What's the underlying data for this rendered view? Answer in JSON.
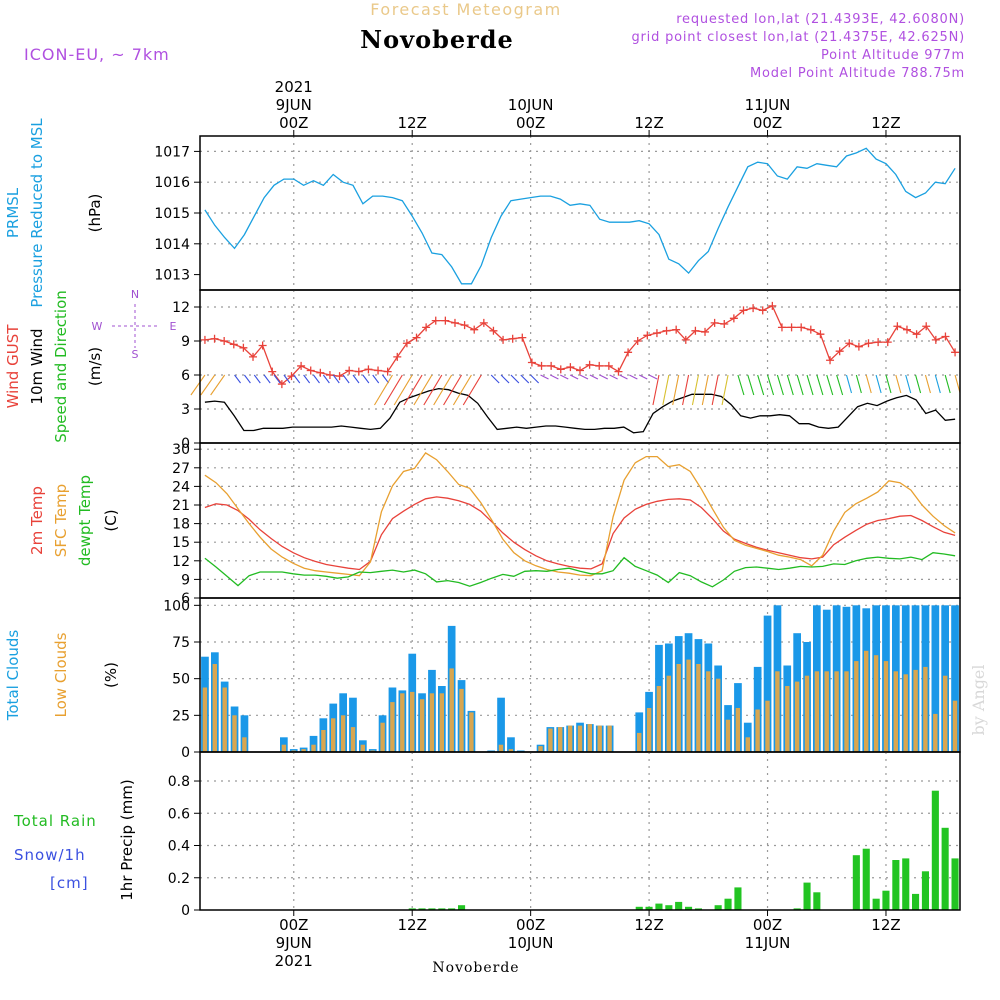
{
  "header": {
    "top_title": "Forecast Meteogram",
    "location": "Novoberde",
    "model": "ICON-EU, ~ 7km",
    "requested": "requested lon,lat (21.4393E, 42.6080N)",
    "closest": "grid point closest lon,lat (21.4375E, 42.625N)",
    "point_alt": "Point Altitude 977m",
    "model_alt": "Model Point Altitude 788.75m",
    "footer_location": "Novoberde",
    "watermark": "by Angel"
  },
  "time_axis": {
    "top_labels": [
      {
        "day": "9JUN",
        "hour": "00Z",
        "year": "2021",
        "t": 9
      },
      {
        "day": "",
        "hour": "12Z",
        "year": "",
        "t": 21
      },
      {
        "day": "10JUN",
        "hour": "00Z",
        "year": "",
        "t": 33
      },
      {
        "day": "",
        "hour": "12Z",
        "year": "",
        "t": 45
      },
      {
        "day": "11JUN",
        "hour": "00Z",
        "year": "",
        "t": 57
      },
      {
        "day": "",
        "hour": "12Z",
        "year": "",
        "t": 69
      }
    ],
    "bottom_labels": [
      {
        "hour": "00Z",
        "day": "9JUN",
        "year": "2021",
        "t": 9
      },
      {
        "hour": "12Z",
        "day": "",
        "year": "",
        "t": 21
      },
      {
        "hour": "00Z",
        "day": "10JUN",
        "year": "",
        "t": 33
      },
      {
        "hour": "12Z",
        "day": "",
        "year": "",
        "t": 45
      },
      {
        "hour": "00Z",
        "day": "11JUN",
        "year": "",
        "t": 57
      },
      {
        "hour": "12Z",
        "day": "",
        "year": "",
        "t": 69
      }
    ],
    "t_range": [
      -0.5,
      76.5
    ]
  },
  "chart_data": [
    {
      "type": "line",
      "id": "pressure",
      "left_labels": [
        {
          "text": "PRMSL",
          "color": "#1aa0e0"
        },
        {
          "text": "Pressure Reduced to MSL",
          "color": "#1aa0e0"
        },
        {
          "text": "(hPa)",
          "color": "#000000"
        }
      ],
      "ylim": [
        1012.5,
        1017.5
      ],
      "yticks": [
        1013,
        1014,
        1015,
        1016,
        1017
      ],
      "series": [
        {
          "name": "PRMSL",
          "color": "#1aa0e0",
          "values": [
            1015.1,
            1014.6,
            1014.2,
            1013.85,
            1014.3,
            1014.9,
            1015.5,
            1015.9,
            1016.1,
            1016.1,
            1015.9,
            1016.05,
            1015.9,
            1016.25,
            1016.0,
            1015.9,
            1015.3,
            1015.55,
            1015.55,
            1015.5,
            1015.4,
            1014.9,
            1014.35,
            1013.7,
            1013.65,
            1013.25,
            1012.7,
            1012.7,
            1013.3,
            1014.2,
            1014.9,
            1015.4,
            1015.45,
            1015.5,
            1015.55,
            1015.55,
            1015.45,
            1015.25,
            1015.3,
            1015.25,
            1014.8,
            1014.7,
            1014.7,
            1014.7,
            1014.75,
            1014.65,
            1014.3,
            1013.5,
            1013.35,
            1013.05,
            1013.45,
            1013.75,
            1014.5,
            1015.2,
            1015.85,
            1016.5,
            1016.65,
            1016.6,
            1016.2,
            1016.1,
            1016.5,
            1016.45,
            1016.6,
            1016.55,
            1016.5,
            1016.85,
            1016.95,
            1017.1,
            1016.75,
            1016.6,
            1016.25,
            1015.7,
            1015.5,
            1015.65,
            1016.0,
            1015.95,
            1016.45
          ]
        }
      ]
    },
    {
      "type": "line",
      "id": "wind",
      "left_labels": [
        {
          "text": "Wind GUST",
          "color": "#e8423a"
        },
        {
          "text": "10m Wind",
          "color": "#000000"
        },
        {
          "text": "Speed and Direction",
          "color": "#22bb22"
        },
        {
          "text": "(m/s)",
          "color": "#000000"
        }
      ],
      "compass": {
        "n": "N",
        "s": "S",
        "w": "W",
        "e": "E",
        "color": "#a050d0"
      },
      "ylim": [
        0,
        13.5
      ],
      "yticks": [
        0,
        3,
        6,
        9,
        12
      ],
      "series": [
        {
          "name": "Wind GUST",
          "color": "#e8423a",
          "marker": "plus",
          "values": [
            9.1,
            9.2,
            9.0,
            8.7,
            8.4,
            7.6,
            8.6,
            6.3,
            5.2,
            5.9,
            6.8,
            6.4,
            6.2,
            6.0,
            5.9,
            6.4,
            6.3,
            6.5,
            6.4,
            6.3,
            7.6,
            8.8,
            9.3,
            10.2,
            10.8,
            10.8,
            10.6,
            10.4,
            10.0,
            10.6,
            9.9,
            9.1,
            9.2,
            9.3,
            7.1,
            6.8,
            6.8,
            6.5,
            6.7,
            6.4,
            6.9,
            6.8,
            6.8,
            6.3,
            8.0,
            9.0,
            9.5,
            9.7,
            9.9,
            10.0,
            9.1,
            9.9,
            9.8,
            10.6,
            10.5,
            11.0,
            11.7,
            11.9,
            11.7,
            12.1,
            10.2,
            10.2,
            10.2,
            10.0,
            9.6,
            7.3,
            8.1,
            8.8,
            8.5,
            8.8,
            8.9,
            8.9,
            10.3,
            10.0,
            9.6,
            10.3,
            9.1,
            9.4,
            8.0
          ]
        },
        {
          "name": "10m Wind",
          "color": "#000000",
          "values": [
            3.6,
            3.7,
            3.6,
            2.4,
            1.1,
            1.1,
            1.3,
            1.3,
            1.3,
            1.4,
            1.4,
            1.4,
            1.4,
            1.4,
            1.5,
            1.4,
            1.3,
            1.2,
            1.3,
            2.2,
            3.6,
            4.0,
            4.3,
            4.6,
            4.8,
            4.7,
            4.4,
            4.2,
            3.5,
            2.3,
            1.2,
            1.3,
            1.4,
            1.3,
            1.4,
            1.5,
            1.5,
            1.4,
            1.3,
            1.2,
            1.2,
            1.3,
            1.3,
            1.4,
            0.9,
            1.0,
            2.6,
            3.2,
            3.7,
            4.0,
            4.3,
            4.3,
            4.3,
            4.1,
            3.4,
            2.4,
            2.2,
            2.4,
            2.4,
            2.5,
            2.4,
            1.7,
            1.7,
            1.4,
            1.3,
            1.4,
            2.3,
            3.2,
            3.5,
            3.3,
            3.7,
            4.0,
            4.2,
            3.8,
            2.6,
            2.9,
            2.0,
            2.1
          ]
        }
      ]
    },
    {
      "type": "line",
      "id": "temperature",
      "left_labels": [
        {
          "text": "2m Temp",
          "color": "#e8423a"
        },
        {
          "text": "SFC Temp",
          "color": "#e8a030"
        },
        {
          "text": "dewpt Temp",
          "color": "#22bb22"
        },
        {
          "text": "(C)",
          "color": "#000000"
        }
      ],
      "ylim": [
        6,
        31
      ],
      "yticks": [
        6,
        9,
        12,
        15,
        18,
        21,
        24,
        27,
        30
      ],
      "series": [
        {
          "name": "2m Temp",
          "color": "#e8423a",
          "values": [
            20.6,
            21.2,
            21.0,
            20.1,
            18.7,
            17.0,
            15.6,
            14.3,
            13.3,
            12.5,
            11.9,
            11.4,
            11.1,
            10.8,
            10.6,
            11.9,
            16.2,
            18.8,
            20.0,
            21.1,
            22.0,
            22.3,
            22.1,
            21.7,
            21.1,
            20.0,
            18.3,
            16.5,
            15.0,
            13.8,
            12.8,
            12.0,
            11.5,
            11.1,
            10.8,
            10.7,
            11.5,
            16.4,
            18.9,
            20.3,
            21.1,
            21.6,
            21.9,
            22.0,
            21.8,
            20.6,
            18.8,
            16.8,
            15.5,
            14.8,
            14.2,
            13.7,
            13.3,
            12.9,
            12.5,
            12.3,
            12.6,
            14.6,
            15.8,
            16.9,
            17.9,
            18.5,
            18.8,
            19.2,
            19.3,
            18.5,
            17.5,
            16.6,
            16.1
          ]
        },
        {
          "name": "SFC Temp",
          "color": "#e8a030",
          "values": [
            25.8,
            24.6,
            22.8,
            20.4,
            18.0,
            15.8,
            13.9,
            12.6,
            11.6,
            10.8,
            10.4,
            10.2,
            10.0,
            9.8,
            9.6,
            11.8,
            19.9,
            24.1,
            26.4,
            26.9,
            29.4,
            28.3,
            26.4,
            24.3,
            23.7,
            21.4,
            18.6,
            15.5,
            13.3,
            12.0,
            11.2,
            10.6,
            10.2,
            10.0,
            9.7,
            9.6,
            10.4,
            19.1,
            25.0,
            27.8,
            28.8,
            28.8,
            27.2,
            27.5,
            26.4,
            23.6,
            20.4,
            17.4,
            15.3,
            14.5,
            14.0,
            13.5,
            12.9,
            12.6,
            12.2,
            11.2,
            12.9,
            16.8,
            19.8,
            21.2,
            22.1,
            23.1,
            24.9,
            24.6,
            23.4,
            21.0,
            19.2,
            17.7,
            16.5
          ]
        },
        {
          "name": "dewpt Temp",
          "color": "#22bb22",
          "values": [
            12.4,
            11.0,
            9.5,
            8.0,
            9.6,
            10.2,
            10.2,
            10.2,
            9.9,
            9.7,
            9.7,
            9.5,
            9.2,
            9.4,
            10.2,
            10.1,
            10.3,
            10.5,
            10.2,
            10.5,
            9.9,
            8.6,
            8.8,
            8.5,
            7.9,
            8.5,
            9.2,
            9.8,
            9.5,
            10.3,
            10.4,
            10.3,
            10.6,
            10.8,
            10.3,
            9.9,
            9.9,
            10.4,
            12.5,
            11.1,
            10.4,
            9.7,
            8.5,
            10.1,
            9.6,
            8.6,
            7.8,
            8.9,
            10.3,
            10.9,
            11.0,
            10.8,
            10.6,
            10.8,
            11.1,
            11.0,
            11.1,
            11.5,
            11.4,
            12.0,
            12.4,
            12.6,
            12.4,
            12.3,
            12.6,
            12.2,
            13.3,
            13.1,
            12.8
          ]
        }
      ]
    },
    {
      "type": "bar",
      "id": "clouds",
      "left_labels": [
        {
          "text": "Total Clouds",
          "color": "#1aa0e0"
        },
        {
          "text": "Low Clouds",
          "color": "#e8a030"
        },
        {
          "text": "(%)",
          "color": "#000000"
        }
      ],
      "ylim": [
        0,
        105
      ],
      "yticks": [
        0,
        25,
        50,
        75,
        100
      ],
      "series": [
        {
          "name": "Total Clouds",
          "color": "#1a98e8",
          "values": [
            65,
            68,
            48,
            31,
            25,
            0,
            0,
            0,
            10,
            2,
            3,
            11,
            23,
            33,
            40,
            37,
            8,
            2,
            25,
            44,
            42,
            67,
            40,
            56,
            45,
            86,
            49,
            28,
            0,
            1,
            37,
            10,
            1,
            0,
            5,
            17,
            17,
            18,
            20,
            19,
            18,
            18,
            0,
            0,
            27,
            41,
            73,
            74,
            79,
            81,
            77,
            74,
            59,
            32,
            47,
            20,
            58,
            93,
            100,
            59,
            81,
            75,
            100,
            97,
            100,
            99,
            100,
            98,
            100,
            100,
            100,
            100,
            100,
            100,
            100,
            100,
            100
          ]
        },
        {
          "name": "Low Clouds",
          "color": "#d8a650",
          "values": [
            44,
            60,
            44,
            25,
            10,
            0,
            0,
            0,
            5,
            1,
            2,
            5,
            15,
            23,
            25,
            17,
            5,
            1,
            20,
            34,
            40,
            41,
            36,
            40,
            40,
            57,
            43,
            27,
            0,
            0,
            5,
            2,
            0,
            0,
            4,
            16,
            17,
            18,
            18,
            19,
            18,
            18,
            0,
            0,
            13,
            30,
            45,
            52,
            60,
            63,
            60,
            55,
            50,
            22,
            30,
            10,
            29,
            35,
            55,
            45,
            48,
            52,
            55,
            55,
            55,
            55,
            62,
            69,
            66,
            62,
            55,
            53,
            56,
            58,
            26,
            52,
            35
          ]
        }
      ]
    },
    {
      "type": "bar",
      "id": "precip",
      "left_labels": [
        {
          "text": "Total Rain",
          "color": "#22bb22"
        },
        {
          "text": "Snow/1h",
          "color": "#3a50e0"
        },
        {
          "text": "[cm]",
          "color": "#3a50e0"
        },
        {
          "text": "1hr Precip (mm)",
          "color": "#000000"
        }
      ],
      "ylim": [
        0,
        0.98
      ],
      "yticks": [
        0,
        0.2,
        0.4,
        0.6,
        0.8
      ],
      "ytick_labels": [
        "0",
        "0.2",
        "0.4",
        "0.6",
        "0.8"
      ],
      "series": [
        {
          "name": "Total Rain",
          "color": "#22c422",
          "values": [
            0,
            0,
            0,
            0,
            0,
            0,
            0,
            0,
            0,
            0,
            0,
            0,
            0,
            0,
            0,
            0,
            0,
            0,
            0,
            0,
            0,
            0.01,
            0.01,
            0.01,
            0.01,
            0.01,
            0.03,
            0,
            0,
            0,
            0,
            0,
            0,
            0,
            0,
            0,
            0,
            0,
            0,
            0,
            0,
            0,
            0,
            0,
            0.02,
            0.02,
            0.04,
            0.03,
            0.05,
            0.02,
            0.01,
            0,
            0.03,
            0.07,
            0.14,
            0,
            0,
            0,
            0,
            0,
            0.01,
            0.17,
            0.11,
            0,
            0,
            0,
            0.34,
            0.38,
            0.07,
            0.12,
            0.31,
            0.32,
            0.1,
            0.24,
            0.74,
            0.51,
            0.32
          ]
        },
        {
          "name": "Snow/1h",
          "color": "#3a50e0",
          "values": [
            0,
            0,
            0,
            0,
            0,
            0,
            0,
            0,
            0,
            0,
            0,
            0,
            0,
            0,
            0,
            0,
            0,
            0,
            0,
            0,
            0,
            0,
            0,
            0,
            0,
            0,
            0,
            0,
            0,
            0,
            0,
            0,
            0,
            0,
            0,
            0,
            0,
            0,
            0,
            0,
            0,
            0,
            0,
            0,
            0,
            0,
            0,
            0,
            0,
            0,
            0,
            0,
            0,
            0,
            0,
            0,
            0,
            0,
            0,
            0,
            0,
            0,
            0,
            0,
            0,
            0,
            0,
            0,
            0,
            0,
            0,
            0,
            0,
            0,
            0,
            0,
            0
          ]
        }
      ]
    }
  ]
}
